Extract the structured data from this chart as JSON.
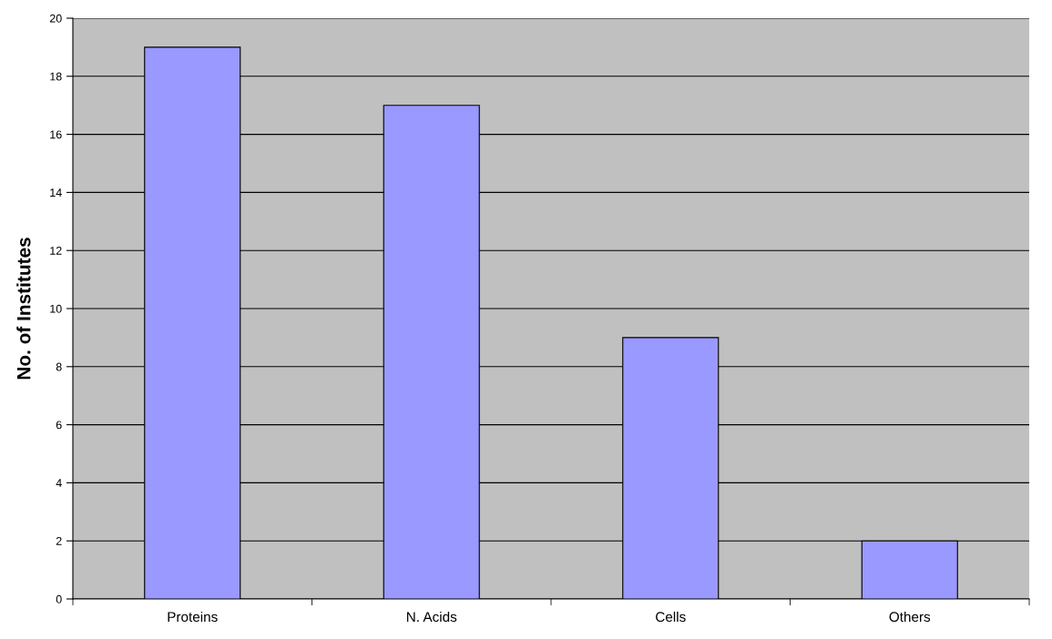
{
  "chart_data": {
    "type": "bar",
    "ylabel": "No. of Institutes",
    "categories": [
      "Proteins",
      "N. Acids",
      "Cells",
      "Others"
    ],
    "values": [
      19,
      17,
      9,
      2
    ],
    "color": "#9999ff",
    "ylim": [
      0,
      20
    ],
    "yticks": [
      0,
      2,
      4,
      6,
      8,
      10,
      12,
      14,
      16,
      18,
      20
    ],
    "grid": "y"
  }
}
